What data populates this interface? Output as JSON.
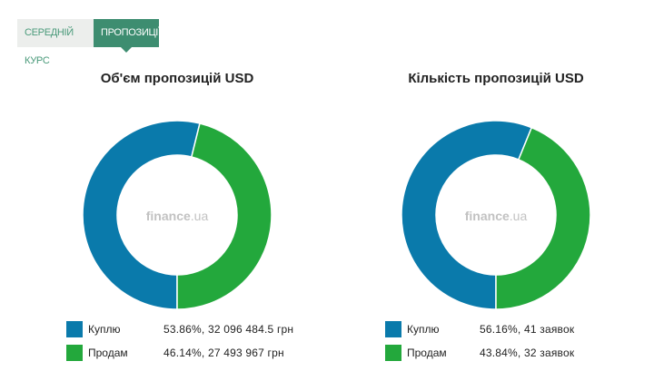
{
  "tabs": [
    {
      "label": "Середній курс",
      "active": false
    },
    {
      "label": "Пропозиції",
      "active": true
    }
  ],
  "watermark": "finance.ua",
  "colors": {
    "buy": "#0a7aab",
    "sell": "#23a83c",
    "accent": "#3d8d70"
  },
  "chart_data": [
    {
      "type": "pie",
      "title": "Об'єм пропозицій USD",
      "labels": [
        "Куплю",
        "Продам"
      ],
      "values": [
        53.86,
        46.14
      ],
      "legend": [
        {
          "label": "Куплю",
          "value": "53.86%, 32 096 484.5 грн"
        },
        {
          "label": "Продам",
          "value": "46.14%, 27 493 967 грн"
        }
      ]
    },
    {
      "type": "pie",
      "title": "Кількість пропозицій USD",
      "labels": [
        "Куплю",
        "Продам"
      ],
      "values": [
        56.16,
        43.84
      ],
      "legend": [
        {
          "label": "Куплю",
          "value": "56.16%, 41 заявок"
        },
        {
          "label": "Продам",
          "value": "43.84%, 32 заявок"
        }
      ]
    }
  ]
}
